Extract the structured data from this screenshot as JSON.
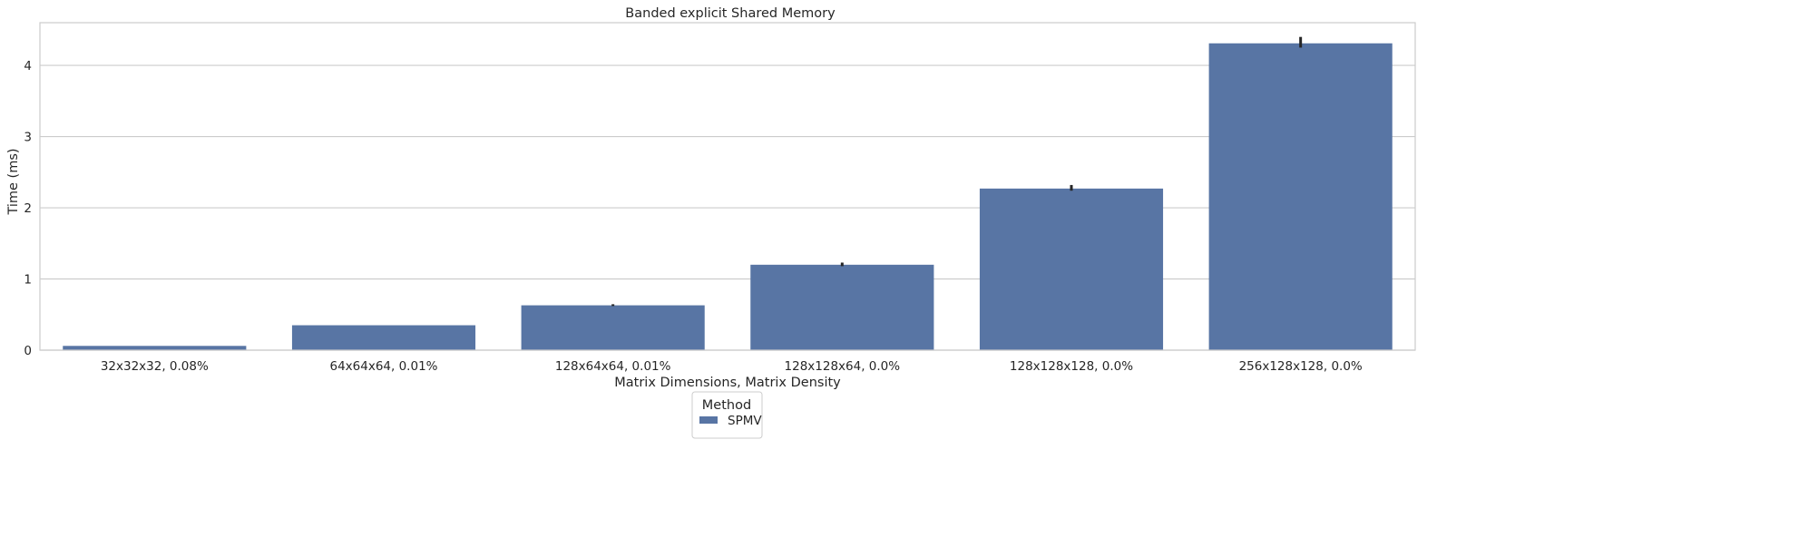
{
  "chart_data": {
    "type": "bar",
    "title": "Banded explicit Shared Memory",
    "xlabel": "Matrix Dimensions, Matrix Density",
    "ylabel": "Time (ms)",
    "categories": [
      "32x32x32, 0.08%",
      "64x64x64, 0.01%",
      "128x64x64, 0.01%",
      "128x128x64, 0.0%",
      "128x128x128, 0.0%",
      "256x128x128, 0.0%"
    ],
    "series": [
      {
        "name": "SPMV",
        "values": [
          0.06,
          0.35,
          0.63,
          1.2,
          2.27,
          4.31
        ],
        "error_low": [
          0.06,
          0.35,
          0.62,
          1.18,
          2.24,
          4.25
        ],
        "error_high": [
          0.06,
          0.35,
          0.645,
          1.23,
          2.32,
          4.4
        ],
        "color": "#5875a4"
      }
    ],
    "ylim": [
      0,
      4.6
    ],
    "yticks": [
      0,
      1,
      2,
      3,
      4
    ],
    "grid": true,
    "grid_axis": "y",
    "legend": {
      "title": "Method",
      "placement": "below-center"
    },
    "colors": {
      "grid": "#cccccc",
      "frame": "#cccccc",
      "errorbar": "#262626"
    }
  }
}
